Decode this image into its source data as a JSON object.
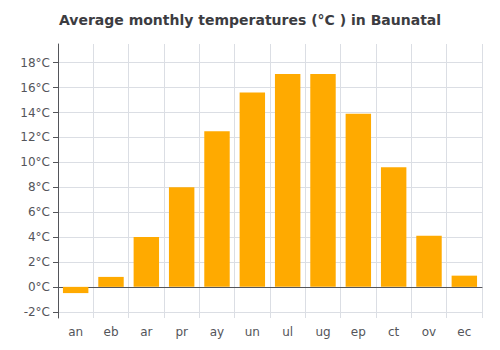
{
  "chart_data": {
    "type": "bar",
    "title": "Average monthly temperatures (°C ) in Baunatal",
    "categories": [
      "an",
      "eb",
      "ar",
      "pr",
      "ay",
      "un",
      "ul",
      "ug",
      "ep",
      "ct",
      "ov",
      "ec"
    ],
    "values": [
      -0.5,
      0.8,
      4.0,
      8.0,
      12.5,
      15.6,
      17.1,
      17.1,
      13.9,
      9.6,
      4.1,
      0.9
    ],
    "color": "#FFAA00",
    "ylim": [
      -2.5,
      19.5
    ],
    "yticks": [
      {
        "value": -2,
        "label": "-2°C"
      },
      {
        "value": 0,
        "label": "0°C"
      },
      {
        "value": 2,
        "label": "2°C"
      },
      {
        "value": 4,
        "label": "4°C"
      },
      {
        "value": 6,
        "label": "6°C"
      },
      {
        "value": 8,
        "label": "8°C"
      },
      {
        "value": 10,
        "label": "10°C"
      },
      {
        "value": 12,
        "label": "12°C"
      },
      {
        "value": 14,
        "label": "14°C"
      },
      {
        "value": 16,
        "label": "16°C"
      },
      {
        "value": 18,
        "label": "18°C"
      }
    ],
    "grid": true
  }
}
